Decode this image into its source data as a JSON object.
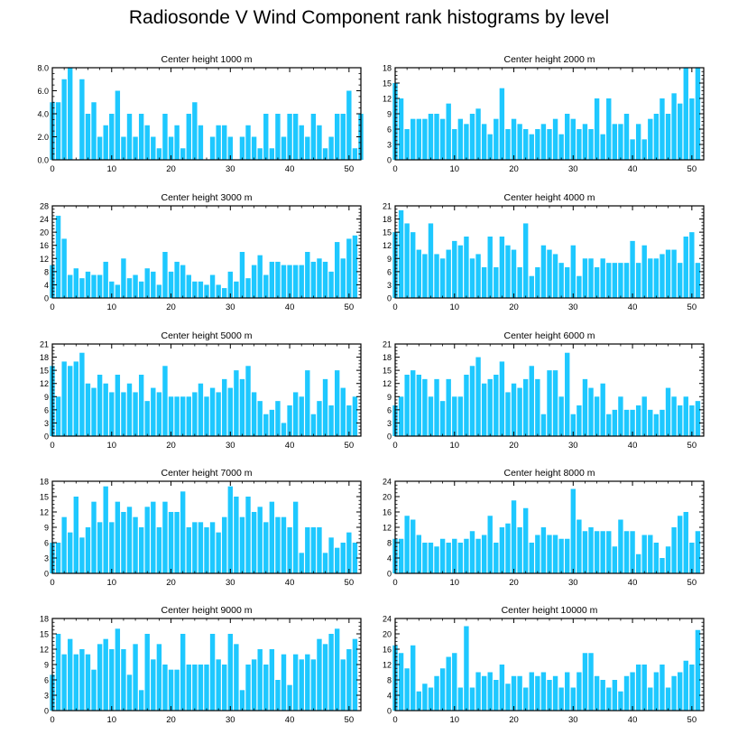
{
  "title": "Radiosonde V Wind Component rank histograms by level",
  "bar_color": "#1ec8ff",
  "chart_data": [
    {
      "type": "bar",
      "title": "Center height 1000 m",
      "xlim": [
        0,
        52
      ],
      "ylim": [
        0,
        8
      ],
      "xticks": [
        0,
        10,
        20,
        30,
        40,
        50
      ],
      "yticks": [
        "0.0",
        "2.0",
        "4.0",
        "6.0",
        "8.0"
      ],
      "ytick_values": [
        0,
        2,
        4,
        6,
        8
      ],
      "values": [
        5,
        5,
        7,
        8,
        0,
        7,
        4,
        5,
        2,
        3,
        4,
        6,
        2,
        4,
        2,
        4,
        3,
        2,
        1,
        4,
        2,
        3,
        1,
        4,
        5,
        3,
        0,
        2,
        3,
        3,
        2,
        0,
        2,
        3,
        2,
        1,
        4,
        1,
        4,
        2,
        4,
        4,
        3,
        2,
        4,
        3,
        1,
        2,
        4,
        4,
        6,
        1,
        4
      ]
    },
    {
      "type": "bar",
      "title": "Center height 2000 m",
      "xlim": [
        0,
        52
      ],
      "ylim": [
        0,
        18
      ],
      "xticks": [
        0,
        10,
        20,
        30,
        40,
        50
      ],
      "yticks": [
        "0",
        "3",
        "6",
        "9",
        "12",
        "15",
        "18"
      ],
      "ytick_values": [
        0,
        3,
        6,
        9,
        12,
        15,
        18
      ],
      "values": [
        15,
        12,
        6,
        8,
        8,
        8,
        9,
        9,
        8,
        11,
        6,
        8,
        7,
        9,
        10,
        7,
        5,
        8,
        14,
        6,
        8,
        7,
        6,
        5,
        6,
        7,
        6,
        8,
        5,
        9,
        8,
        6,
        7,
        6,
        12,
        5,
        12,
        7,
        7,
        9,
        4,
        7,
        4,
        8,
        9,
        12,
        9,
        13,
        11,
        18,
        12,
        18
      ]
    },
    {
      "type": "bar",
      "title": "Center height 3000 m",
      "xlim": [
        0,
        52
      ],
      "ylim": [
        0,
        28
      ],
      "xticks": [
        0,
        10,
        20,
        30,
        40,
        50
      ],
      "yticks": [
        "0",
        "4",
        "8",
        "12",
        "16",
        "20",
        "24",
        "28"
      ],
      "ytick_values": [
        0,
        4,
        8,
        12,
        16,
        20,
        24,
        28
      ],
      "values": [
        10,
        25,
        18,
        7,
        9,
        6,
        8,
        7,
        7,
        11,
        5,
        4,
        12,
        6,
        7,
        5,
        9,
        8,
        4,
        14,
        8,
        11,
        10,
        7,
        5,
        5,
        4,
        7,
        4,
        3,
        8,
        5,
        14,
        6,
        10,
        13,
        7,
        11,
        11,
        10,
        10,
        10,
        10,
        14,
        11,
        12,
        11,
        8,
        17,
        12,
        18,
        19
      ]
    },
    {
      "type": "bar",
      "title": "Center height 4000 m",
      "xlim": [
        0,
        52
      ],
      "ylim": [
        0,
        21
      ],
      "xticks": [
        0,
        10,
        20,
        30,
        40,
        50
      ],
      "yticks": [
        "0",
        "3",
        "6",
        "9",
        "12",
        "15",
        "18",
        "21"
      ],
      "ytick_values": [
        0,
        3,
        6,
        9,
        12,
        15,
        18,
        21
      ],
      "values": [
        15,
        20,
        17,
        15,
        11,
        10,
        17,
        10,
        9,
        11,
        13,
        12,
        14,
        9,
        10,
        7,
        14,
        7,
        14,
        12,
        11,
        7,
        17,
        5,
        7,
        12,
        11,
        10,
        8,
        7,
        12,
        5,
        9,
        9,
        7,
        9,
        8,
        8,
        8,
        8,
        13,
        8,
        12,
        9,
        9,
        10,
        11,
        11,
        8,
        14,
        15,
        8
      ]
    },
    {
      "type": "bar",
      "title": "Center height 5000 m",
      "xlim": [
        0,
        52
      ],
      "ylim": [
        0,
        21
      ],
      "xticks": [
        0,
        10,
        20,
        30,
        40,
        50
      ],
      "yticks": [
        "0",
        "3",
        "6",
        "9",
        "12",
        "15",
        "18",
        "21"
      ],
      "ytick_values": [
        0,
        3,
        6,
        9,
        12,
        15,
        18,
        21
      ],
      "values": [
        16,
        9,
        17,
        16,
        17,
        19,
        12,
        11,
        14,
        12,
        10,
        14,
        10,
        12,
        10,
        14,
        8,
        11,
        10,
        16,
        9,
        9,
        9,
        9,
        10,
        12,
        9,
        11,
        10,
        13,
        11,
        15,
        13,
        16,
        10,
        8,
        5,
        6,
        8,
        3,
        7,
        10,
        9,
        15,
        5,
        8,
        13,
        7,
        15,
        11,
        7,
        9
      ]
    },
    {
      "type": "bar",
      "title": "Center height 6000 m",
      "xlim": [
        0,
        52
      ],
      "ylim": [
        0,
        21
      ],
      "xticks": [
        0,
        10,
        20,
        30,
        40,
        50
      ],
      "yticks": [
        "0",
        "3",
        "6",
        "9",
        "12",
        "15",
        "18",
        "21"
      ],
      "ytick_values": [
        0,
        3,
        6,
        9,
        12,
        15,
        18,
        21
      ],
      "values": [
        7,
        9,
        14,
        15,
        14,
        13,
        9,
        13,
        8,
        13,
        9,
        9,
        14,
        16,
        18,
        12,
        13,
        14,
        17,
        10,
        12,
        11,
        13,
        16,
        13,
        5,
        15,
        15,
        9,
        19,
        5,
        7,
        13,
        11,
        9,
        12,
        5,
        6,
        9,
        6,
        6,
        7,
        9,
        6,
        5,
        6,
        11,
        9,
        7,
        9,
        7,
        8
      ]
    },
    {
      "type": "bar",
      "title": "Center height 7000 m",
      "xlim": [
        0,
        52
      ],
      "ylim": [
        0,
        18
      ],
      "xticks": [
        0,
        10,
        20,
        30,
        40,
        50
      ],
      "yticks": [
        "0",
        "3",
        "6",
        "9",
        "12",
        "15",
        "18"
      ],
      "ytick_values": [
        0,
        3,
        6,
        9,
        12,
        15,
        18
      ],
      "values": [
        6,
        6,
        11,
        8,
        15,
        7,
        9,
        14,
        10,
        17,
        10,
        14,
        12,
        13,
        11,
        9,
        13,
        14,
        9,
        14,
        12,
        12,
        16,
        9,
        10,
        10,
        9,
        10,
        8,
        11,
        17,
        15,
        11,
        15,
        12,
        13,
        10,
        14,
        11,
        11,
        9,
        14,
        4,
        9,
        9,
        9,
        4,
        7,
        5,
        6,
        8,
        6
      ]
    },
    {
      "type": "bar",
      "title": "Center height 8000 m",
      "xlim": [
        0,
        52
      ],
      "ylim": [
        0,
        24
      ],
      "xticks": [
        0,
        10,
        20,
        30,
        40,
        50
      ],
      "yticks": [
        "0",
        "4",
        "8",
        "12",
        "16",
        "20",
        "24"
      ],
      "ytick_values": [
        0,
        4,
        8,
        12,
        16,
        20,
        24
      ],
      "values": [
        9,
        9,
        15,
        14,
        10,
        8,
        8,
        7,
        9,
        8,
        9,
        8,
        9,
        11,
        9,
        10,
        15,
        8,
        12,
        13,
        19,
        12,
        17,
        8,
        10,
        12,
        10,
        10,
        9,
        9,
        22,
        14,
        11,
        12,
        11,
        11,
        11,
        7,
        14,
        11,
        11,
        5,
        10,
        10,
        8,
        4,
        7,
        12,
        15,
        16,
        8,
        11
      ]
    },
    {
      "type": "bar",
      "title": "Center height 9000 m",
      "xlim": [
        0,
        52
      ],
      "ylim": [
        0,
        18
      ],
      "xticks": [
        0,
        10,
        20,
        30,
        40,
        50
      ],
      "yticks": [
        "0",
        "3",
        "6",
        "9",
        "12",
        "15",
        "18"
      ],
      "ytick_values": [
        0,
        3,
        6,
        9,
        12,
        15,
        18
      ],
      "values": [
        7,
        15,
        11,
        14,
        11,
        12,
        11,
        8,
        13,
        14,
        12,
        16,
        12,
        7,
        13,
        4,
        15,
        10,
        13,
        9,
        8,
        8,
        15,
        9,
        9,
        9,
        9,
        15,
        10,
        9,
        15,
        13,
        4,
        9,
        10,
        12,
        9,
        12,
        6,
        11,
        5,
        11,
        10,
        11,
        10,
        14,
        13,
        15,
        16,
        10,
        12,
        14
      ]
    },
    {
      "type": "bar",
      "title": "Center height 10000 m",
      "xlim": [
        0,
        52
      ],
      "ylim": [
        0,
        24
      ],
      "xticks": [
        0,
        10,
        20,
        30,
        40,
        50
      ],
      "yticks": [
        "0",
        "4",
        "8",
        "12",
        "16",
        "20",
        "24"
      ],
      "ytick_values": [
        0,
        4,
        8,
        12,
        16,
        20,
        24
      ],
      "values": [
        17,
        15,
        11,
        17,
        5,
        7,
        6,
        9,
        11,
        14,
        15,
        6,
        22,
        6,
        10,
        9,
        10,
        8,
        12,
        7,
        9,
        9,
        6,
        10,
        9,
        10,
        8,
        9,
        6,
        10,
        6,
        10,
        15,
        15,
        9,
        8,
        6,
        8,
        5,
        9,
        10,
        12,
        12,
        6,
        10,
        12,
        6,
        9,
        10,
        13,
        12,
        21
      ]
    }
  ]
}
